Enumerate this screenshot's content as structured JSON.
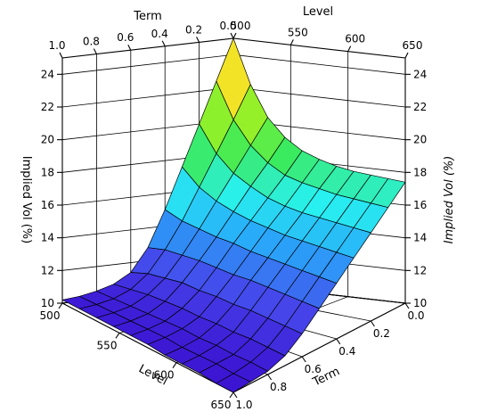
{
  "chart_data": {
    "type": "surface",
    "title": "",
    "colormap": "rainbow",
    "axes": {
      "level": {
        "label": "Level",
        "range": [
          500,
          650
        ],
        "ticks": [
          500,
          550,
          600,
          650
        ],
        "tick_labels": [
          "500",
          "550",
          "600",
          "650"
        ]
      },
      "term": {
        "label": "Term",
        "range": [
          0.0,
          1.0
        ],
        "ticks": [
          0.0,
          0.2,
          0.4,
          0.6,
          0.8,
          1.0
        ],
        "tick_labels": [
          "0.0",
          "0.2",
          "0.4",
          "0.6",
          "0.8",
          "1.0"
        ]
      },
      "vol": {
        "label": "Implied Vol (%)",
        "range": [
          10,
          25
        ],
        "ticks": [
          10,
          12,
          14,
          16,
          18,
          20,
          22,
          24
        ],
        "tick_labels": [
          "10",
          "12",
          "14",
          "16",
          "18",
          "20",
          "22",
          "24"
        ]
      }
    },
    "surface": {
      "level": [
        500,
        515,
        530,
        545,
        560,
        575,
        590,
        605,
        620,
        635,
        650
      ],
      "term": [
        0.0,
        0.1,
        0.2,
        0.3,
        0.4,
        0.5,
        0.6,
        0.7,
        0.8,
        0.9,
        1.0
      ],
      "z": [
        [
          25.0,
          22.3,
          20.4,
          19.3,
          18.6,
          18.2,
          17.9,
          17.7,
          17.6,
          17.5,
          17.4
        ],
        [
          22.5,
          20.3,
          18.9,
          18.0,
          17.4,
          17.1,
          16.9,
          16.7,
          16.6,
          16.5,
          16.4
        ],
        [
          20.0,
          18.4,
          17.4,
          16.8,
          16.3,
          16.0,
          15.8,
          15.7,
          15.6,
          15.5,
          15.4
        ],
        [
          17.5,
          16.5,
          15.9,
          15.5,
          15.2,
          15.0,
          14.8,
          14.7,
          14.6,
          14.5,
          14.4
        ],
        [
          15.0,
          14.6,
          14.4,
          14.2,
          14.1,
          13.9,
          13.8,
          13.7,
          13.6,
          13.5,
          13.4
        ],
        [
          12.8,
          13.0,
          13.0,
          13.0,
          12.9,
          12.8,
          12.8,
          12.7,
          12.6,
          12.5,
          12.4
        ],
        [
          11.4,
          11.7,
          11.8,
          11.9,
          11.8,
          11.8,
          11.7,
          11.7,
          11.6,
          11.5,
          11.4
        ],
        [
          10.8,
          10.9,
          11.0,
          11.0,
          11.0,
          10.9,
          10.9,
          10.8,
          10.8,
          10.7,
          10.6
        ],
        [
          10.5,
          10.5,
          10.5,
          10.5,
          10.5,
          10.5,
          10.4,
          10.4,
          10.3,
          10.3,
          10.2
        ],
        [
          10.3,
          10.3,
          10.3,
          10.3,
          10.3,
          10.3,
          10.2,
          10.2,
          10.2,
          10.1,
          10.1
        ],
        [
          10.2,
          10.2,
          10.2,
          10.2,
          10.2,
          10.2,
          10.1,
          10.1,
          10.1,
          10.0,
          10.0
        ]
      ]
    }
  }
}
